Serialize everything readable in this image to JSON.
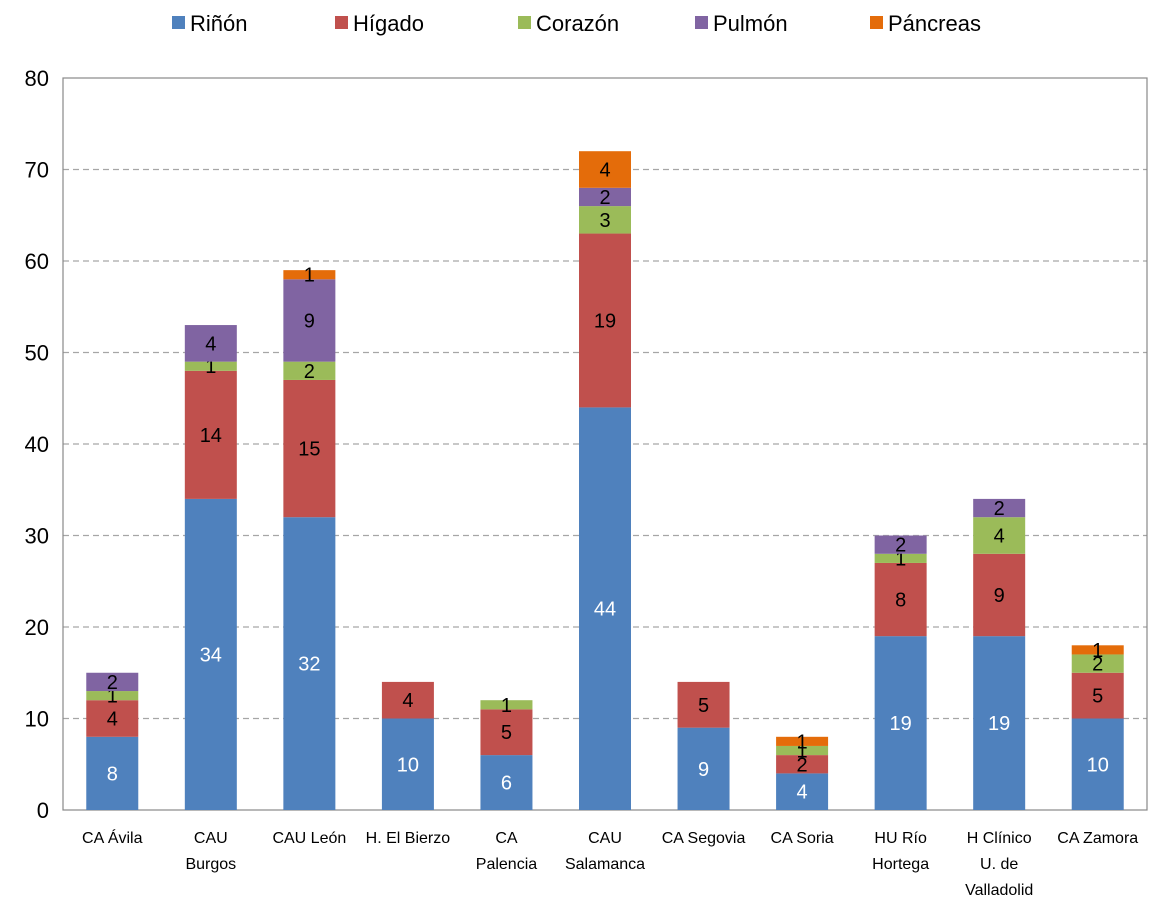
{
  "chart_data": {
    "type": "bar",
    "stacked": true,
    "categories": [
      [
        "CA Ávila"
      ],
      [
        "CAU",
        "Burgos"
      ],
      [
        "CAU León"
      ],
      [
        "H. El Bierzo"
      ],
      [
        "CA",
        "Palencia"
      ],
      [
        "CAU",
        "Salamanca"
      ],
      [
        "CA Segovia"
      ],
      [
        "CA Soria"
      ],
      [
        "HU Río",
        "Hortega"
      ],
      [
        "H Clínico",
        "U. de",
        "Valladolid"
      ],
      [
        "CA Zamora"
      ]
    ],
    "series": [
      {
        "name": "Riñón",
        "color": "#4F81BD",
        "label_color": "#ffffff",
        "values": [
          8,
          34,
          32,
          10,
          6,
          44,
          9,
          4,
          19,
          19,
          10
        ]
      },
      {
        "name": "Hígado",
        "color": "#C0504D",
        "label_color": "#000000",
        "values": [
          4,
          14,
          15,
          4,
          5,
          19,
          5,
          2,
          8,
          9,
          5
        ]
      },
      {
        "name": "Corazón",
        "color": "#9BBB59",
        "label_color": "#000000",
        "values": [
          1,
          1,
          2,
          0,
          1,
          3,
          0,
          1,
          1,
          4,
          2
        ]
      },
      {
        "name": "Pulmón",
        "color": "#8064A2",
        "label_color": "#000000",
        "values": [
          2,
          4,
          9,
          0,
          0,
          2,
          0,
          0,
          2,
          2,
          0
        ]
      },
      {
        "name": "Páncreas",
        "color": "#E46C0A",
        "label_color": "#000000",
        "values": [
          0,
          0,
          1,
          0,
          0,
          4,
          0,
          1,
          0,
          0,
          1
        ]
      }
    ],
    "ylim": [
      0,
      80
    ],
    "yticks": [
      0,
      10,
      20,
      30,
      40,
      50,
      60,
      70,
      80
    ],
    "grid": "horizontal dashed",
    "legend": "top"
  }
}
